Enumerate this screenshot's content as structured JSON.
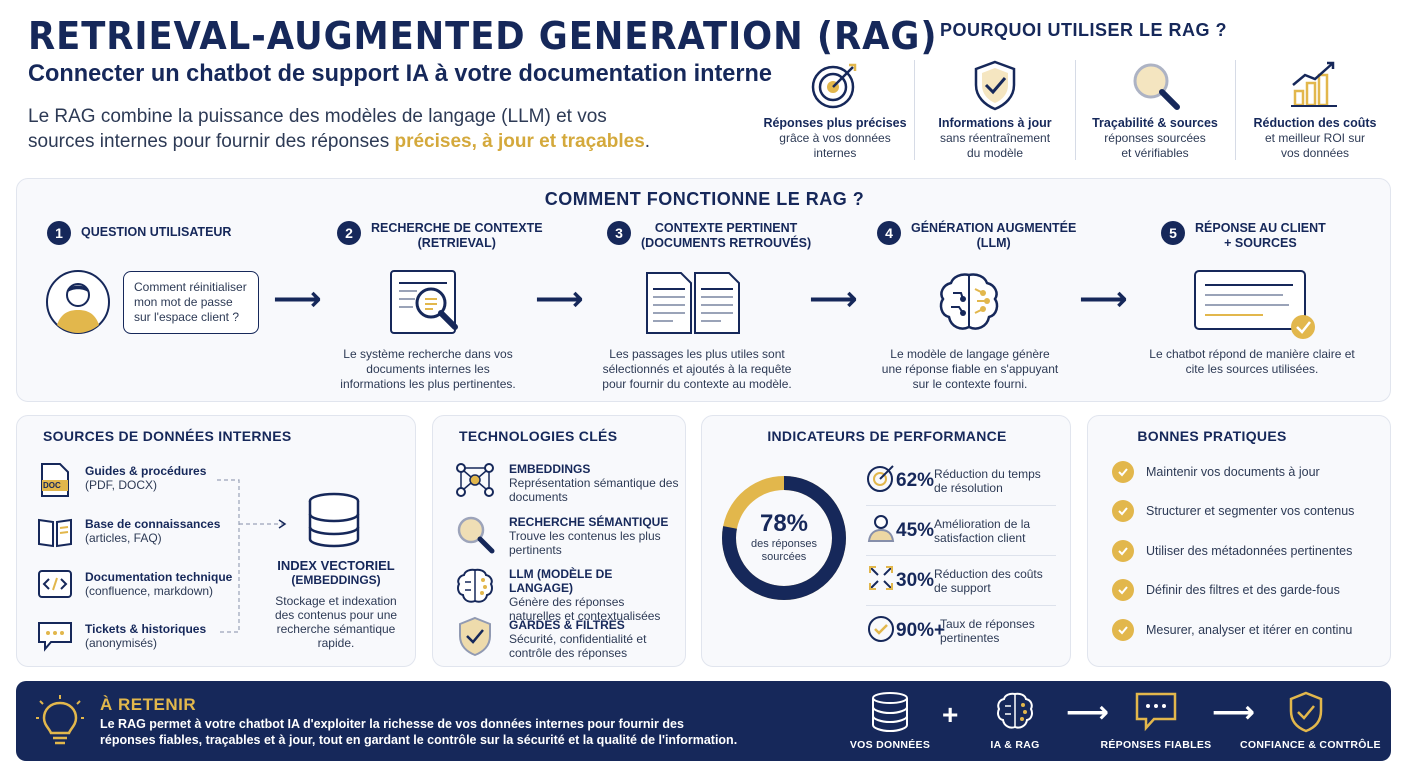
{
  "header": {
    "title": "RETRIEVAL-AUGMENTED GENERATION (RAG)",
    "subtitle": "Connecter un chatbot de support IA à votre documentation interne",
    "intro_prefix": "Le RAG combine la puissance des modèles de langage (LLM) et vos sources internes pour fournir des réponses ",
    "intro_highlight": "précises, à jour et traçables",
    "intro_suffix": "."
  },
  "why": {
    "title": "POURQUOI UTILISER LE RAG ?",
    "items": [
      {
        "bold": "Réponses plus précises",
        "line1": "grâce à vos données",
        "line2": "internes",
        "icon": "target-icon"
      },
      {
        "bold": "Informations à jour",
        "line1": "sans réentraînement",
        "line2": "du modèle",
        "icon": "shield-check-icon"
      },
      {
        "bold": "Traçabilité & sources",
        "line1": "réponses sourcées",
        "line2": "et vérifiables",
        "icon": "magnifier-icon"
      },
      {
        "bold": "Réduction des coûts",
        "line1": "et meilleur ROI sur",
        "line2": "vos données",
        "icon": "growth-chart-icon"
      }
    ]
  },
  "how": {
    "title": "COMMENT FONCTIONNE LE RAG ?",
    "steps": [
      {
        "num": "1",
        "label1": "QUESTION UTILISATEUR",
        "label2": "",
        "desc": ""
      },
      {
        "num": "2",
        "label1": "RECHERCHE DE CONTEXTE",
        "label2": "(RETRIEVAL)",
        "desc": "Le système recherche dans vos documents internes les informations les plus pertinentes."
      },
      {
        "num": "3",
        "label1": "CONTEXTE PERTINENT",
        "label2": "(DOCUMENTS RETROUVÉS)",
        "desc": "Les passages les plus utiles sont sélectionnés et ajoutés à la requête pour fournir du contexte au modèle."
      },
      {
        "num": "4",
        "label1": "GÉNÉRATION AUGMENTÉE",
        "label2": "(LLM)",
        "desc": "Le modèle de langage génère une réponse fiable en s'appuyant sur le contexte fourni."
      },
      {
        "num": "5",
        "label1": "RÉPONSE AU CLIENT",
        "label2": "+ SOURCES",
        "desc": "Le chatbot répond de manière claire et cite les sources utilisées."
      }
    ],
    "question": "Comment réinitialiser mon mot de passe sur l'espace client ?"
  },
  "sources": {
    "title": "SOURCES DE DONNÉES INTERNES",
    "items": [
      {
        "title": "Guides & procédures",
        "desc": "(PDF, DOCX)",
        "icon": "doc-file-icon"
      },
      {
        "title": "Base de connaissances",
        "desc": "(articles, FAQ)",
        "icon": "book-icon"
      },
      {
        "title": "Documentation technique",
        "desc": "(confluence, markdown)",
        "icon": "code-icon"
      },
      {
        "title": "Tickets & historiques",
        "desc": "(anonymisés)",
        "icon": "chat-ticket-icon"
      }
    ],
    "index_title1": "INDEX VECTORIEL",
    "index_title2": "(EMBEDDINGS)",
    "index_desc": "Stockage et indexation des contenus pour une recherche sémantique rapide.",
    "doc_label": "DOC"
  },
  "tech": {
    "title": "TECHNOLOGIES CLÉS",
    "items": [
      {
        "title": "EMBEDDINGS",
        "desc": "Représentation sémantique des documents",
        "icon": "network-icon"
      },
      {
        "title": "RECHERCHE SÉMANTIQUE",
        "desc": "Trouve les contenus les plus pertinents",
        "icon": "search-icon"
      },
      {
        "title": "LLM (MODÈLE DE LANGAGE)",
        "desc": "Génère des réponses naturelles et contextualisées",
        "icon": "brain-icon"
      },
      {
        "title": "GARDES & FILTRES",
        "desc": "Sécurité, confidentialité et contrôle des réponses",
        "icon": "shield-icon"
      }
    ]
  },
  "kpi": {
    "title": "INDICATEURS DE PERFORMANCE",
    "donut_value": "78%",
    "donut_label": "des réponses sourcées",
    "donut_fraction": 0.78,
    "rows": [
      {
        "value": "62%",
        "label": "Réduction du temps de résolution",
        "icon": "target-speed-icon"
      },
      {
        "value": "45%",
        "label": "Amélioration de la satisfaction client",
        "icon": "user-icon"
      },
      {
        "value": "30%",
        "label": "Réduction des coûts de support",
        "icon": "arrows-icon"
      },
      {
        "value": "90%+",
        "label": "Taux de réponses pertinentes",
        "icon": "check-circle-icon"
      }
    ]
  },
  "best": {
    "title": "BONNES PRATIQUES",
    "items": [
      "Maintenir vos documents à jour",
      "Structurer et segmenter vos contenus",
      "Utiliser des métadonnées pertinentes",
      "Définir des filtres et des garde-fous",
      "Mesurer, analyser et itérer en continu"
    ]
  },
  "footer": {
    "title": "À RETENIR",
    "text": "Le RAG permet à votre chatbot IA d'exploiter la richesse de vos données internes pour fournir des réponses fiables, traçables et à jour, tout en gardant le contrôle sur la sécurité et la qualité de l'information.",
    "labels": [
      "VOS DONNÉES",
      "IA & RAG",
      "RÉPONSES FIABLES",
      "CONFIANCE & CONTRÔLE"
    ]
  },
  "colors": {
    "navy": "#16285a",
    "gold": "#e2b74c",
    "panel": "#f8f9fc"
  }
}
